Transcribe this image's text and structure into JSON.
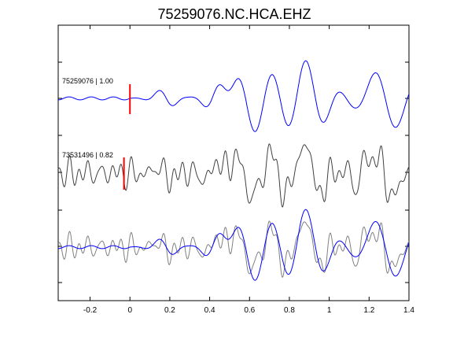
{
  "chart_data": {
    "type": "line",
    "title": "75259076.NC.HCA.EHZ",
    "xlabel": "",
    "ylabel": "",
    "xlim": [
      -0.36,
      1.4
    ],
    "x_ticks": [
      -0.2,
      0,
      0.2,
      0.4,
      0.6,
      0.8,
      1,
      1.2,
      1.4
    ],
    "x_tick_labels": [
      "-0.2",
      "0",
      "0.2",
      "0.4",
      "0.6",
      "0.8",
      "1",
      "1.2",
      "1.4"
    ],
    "grid": false,
    "colors": {
      "master": "#0000ff",
      "other": "#404040",
      "overlay_other": "#808080",
      "pick": "#ff0000"
    },
    "traces": [
      {
        "label": "75259076 | 1.00",
        "color": "#0000ff",
        "pick_time": 0.0
      },
      {
        "label": "73531496 | 0.82",
        "color": "#404040",
        "pick_time": -0.03
      }
    ],
    "overlay": {
      "series": [
        "75259076",
        "73531496"
      ]
    }
  }
}
